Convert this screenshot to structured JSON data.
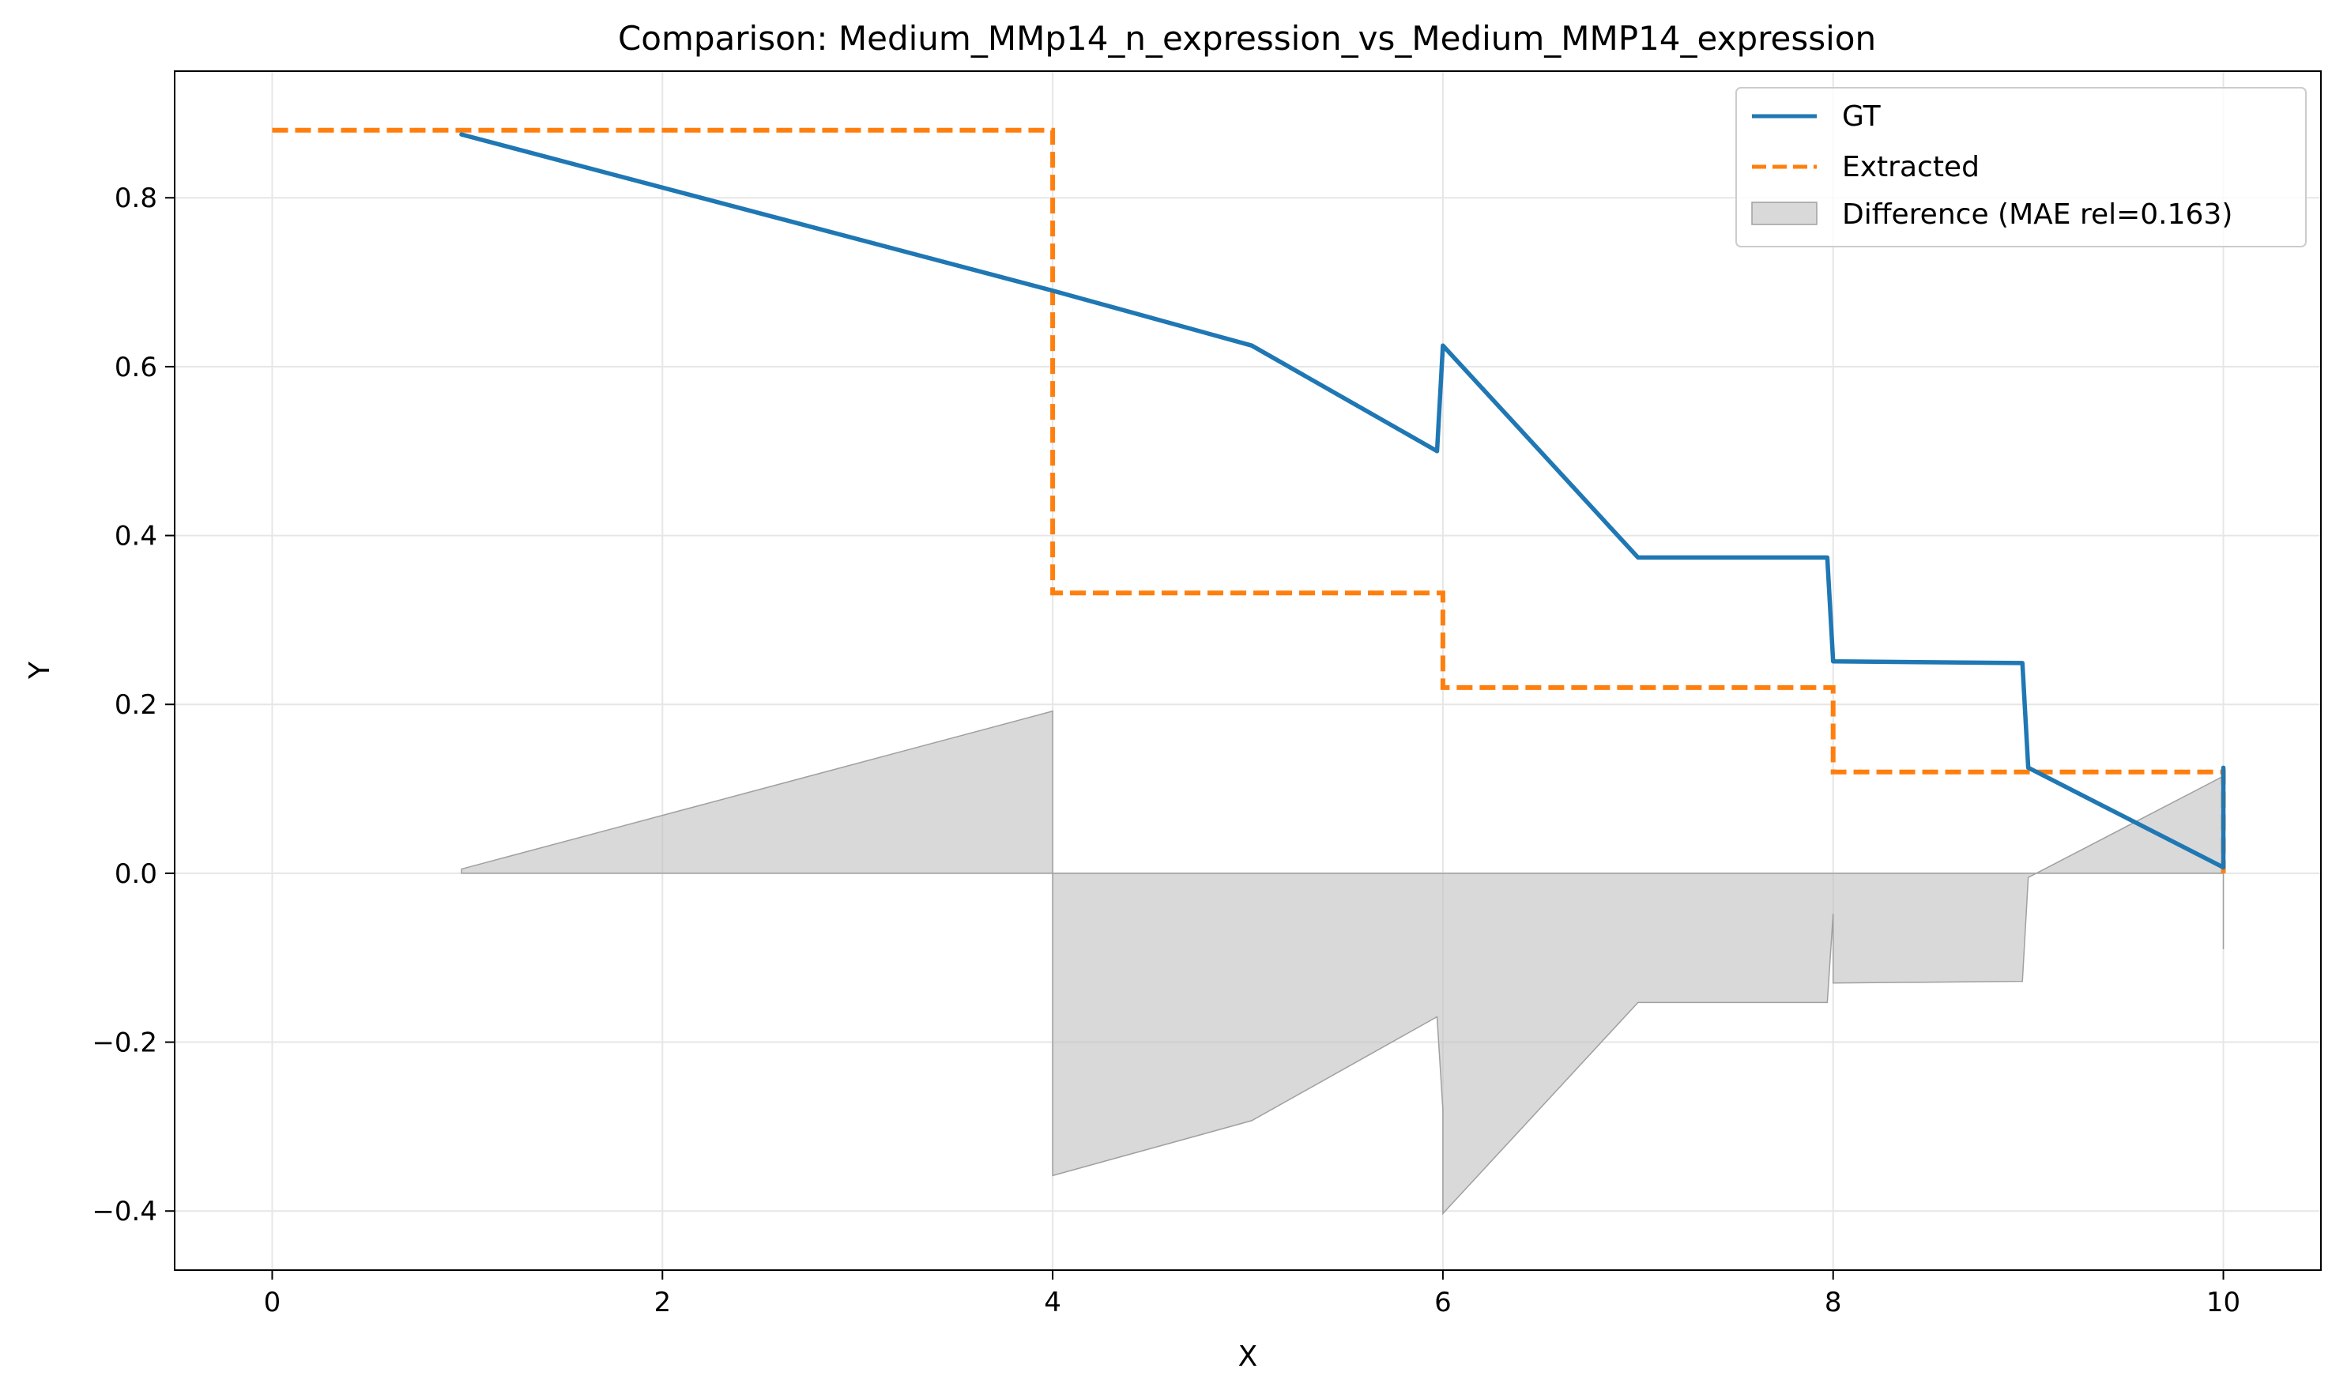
{
  "chart_data": {
    "type": "line",
    "title": "Comparison: Medium_MMp14_n_expression_vs_Medium_MMP14_expression",
    "xlabel": "X",
    "ylabel": "Y",
    "xlim": [
      -0.5,
      10.5
    ],
    "ylim": [
      -0.47,
      0.95
    ],
    "xticks": [
      0,
      2,
      4,
      6,
      8,
      10
    ],
    "yticks": [
      -0.4,
      -0.2,
      0.0,
      0.2,
      0.4,
      0.6,
      0.8
    ],
    "ytick_labels": [
      "−0.4",
      "−0.2",
      "0.0",
      "0.2",
      "0.4",
      "0.6",
      "0.8"
    ],
    "xtick_labels": [
      "0",
      "2",
      "4",
      "6",
      "8",
      "10"
    ],
    "grid": true,
    "legend_position": "top-right",
    "colors": {
      "gt": "#1f77b4",
      "extracted": "#ff7f0e",
      "difference": "#bfbfbf"
    },
    "series": [
      {
        "name": "GT",
        "style": "solid",
        "x": [
          0.97,
          4.0,
          5.02,
          5.97,
          6.0,
          7.0,
          7.97,
          8.0,
          8.97,
          9.0,
          10.0,
          10.0
        ],
        "y": [
          0.875,
          0.69,
          0.625,
          0.5,
          0.625,
          0.374,
          0.374,
          0.251,
          0.249,
          0.125,
          0.007,
          0.125
        ]
      },
      {
        "name": "Extracted",
        "style": "dashed",
        "x": [
          0,
          4.0,
          4.0,
          6.0,
          6.0,
          8.0,
          8.0,
          10.0,
          10.0
        ],
        "y": [
          0.88,
          0.88,
          0.332,
          0.332,
          0.22,
          0.22,
          0.12,
          0.12,
          0.0
        ]
      }
    ],
    "difference": {
      "name": "Difference (MAE rel=0.163)",
      "x": [
        0.97,
        4.0,
        4.0,
        5.02,
        5.97,
        6.0,
        6.0,
        7.0,
        7.97,
        8.0,
        8.0,
        8.97,
        9.0,
        10.0,
        10.0
      ],
      "y": [
        0.005,
        0.192,
        -0.358,
        -0.293,
        -0.17,
        -0.28,
        -0.403,
        -0.153,
        -0.153,
        -0.048,
        -0.13,
        -0.128,
        -0.005,
        0.115,
        -0.09
      ]
    }
  }
}
